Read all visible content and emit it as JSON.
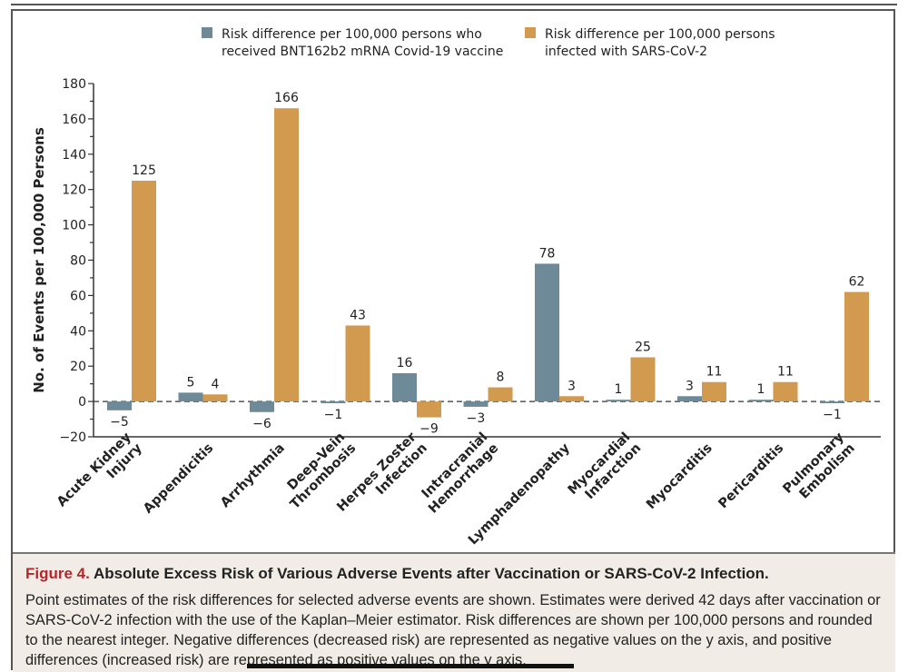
{
  "chart_data": {
    "type": "bar",
    "categories": [
      [
        "Acute Kidney",
        "Injury"
      ],
      [
        "Appendicitis"
      ],
      [
        "Arrhythmia"
      ],
      [
        "Deep-Vein",
        "Thrombosis"
      ],
      [
        "Herpes Zoster",
        "Infection"
      ],
      [
        "Intracranial",
        "Hemorrhage"
      ],
      [
        "Lymphadenopathy"
      ],
      [
        "Myocardial",
        "Infarction"
      ],
      [
        "Myocarditis"
      ],
      [
        "Pericarditis"
      ],
      [
        "Pulmonary",
        "Embolism"
      ]
    ],
    "series": [
      {
        "name": "Risk difference per 100,000 persons who received BNT162b2 mRNA Covid-19 vaccine",
        "legend_lines": [
          "Risk difference per 100,000 persons who",
          "received BNT162b2 mRNA Covid-19 vaccine"
        ],
        "color": "#6e8a98",
        "values": [
          -5,
          5,
          -6,
          -1,
          16,
          -3,
          78,
          1,
          3,
          1,
          -1
        ]
      },
      {
        "name": "Risk difference per 100,000 persons infected with SARS-CoV-2",
        "legend_lines": [
          "Risk difference per 100,000 persons",
          "infected with SARS-CoV-2"
        ],
        "color": "#d19a4f",
        "values": [
          125,
          4,
          166,
          43,
          -9,
          8,
          3,
          25,
          11,
          11,
          62
        ]
      }
    ],
    "ylabel": "No. of Events per 100,000 Persons",
    "ylim": [
      -20,
      180
    ],
    "yticks": [
      -20,
      0,
      20,
      40,
      60,
      80,
      100,
      120,
      140,
      160,
      180
    ],
    "legend": "top",
    "zero_line": "dashed"
  },
  "caption": {
    "figure_label": "Figure 4.",
    "title": "Absolute Excess Risk of Various Adverse Events after Vaccination or SARS-CoV-2 Infection.",
    "body": "Point estimates of the risk differences for selected adverse events are shown. Estimates were derived 42 days after vaccination or SARS-CoV-2 infection with the use of the Kaplan–Meier estimator. Risk differences are shown per 100,000 persons and rounded to the nearest integer. Negative differences (decreased risk) are represented as negative values on the y axis, and positive differences (increased risk) are represented as positive values on the y axis."
  }
}
